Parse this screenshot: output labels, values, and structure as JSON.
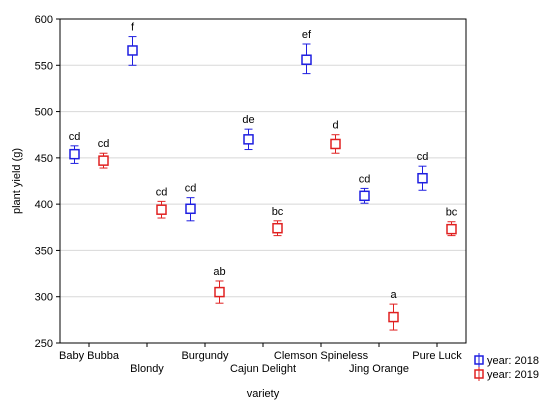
{
  "chart_data": {
    "type": "scatter",
    "title": "",
    "xlabel": "variety",
    "ylabel": "plant yield (g)",
    "ylim": [
      250,
      600
    ],
    "yticks": [
      250,
      300,
      350,
      400,
      450,
      500,
      550,
      600
    ],
    "grid": true,
    "legend_position": "bottom-right",
    "categories": [
      "Baby Bubba",
      "Blondy",
      "Burgundy",
      "Cajun Delight",
      "Clemson Spineless",
      "Jing Orange",
      "Pure Luck"
    ],
    "series": [
      {
        "name": "year: 2018",
        "color": "#1f1fe0",
        "marker": "square",
        "values": [
          454,
          566,
          395,
          470,
          556,
          409,
          428
        ],
        "err_low": [
          444,
          550,
          382,
          459,
          541,
          401,
          415
        ],
        "err_high": [
          463,
          581,
          407,
          481,
          573,
          417,
          441
        ],
        "letters": [
          "cd",
          "f",
          "cd",
          "de",
          "ef",
          "cd",
          "cd"
        ]
      },
      {
        "name": "year: 2019",
        "color": "#e02020",
        "marker": "square",
        "values": [
          447,
          394,
          305,
          374,
          465,
          278,
          373
        ],
        "err_low": [
          439,
          385,
          293,
          366,
          455,
          264,
          366
        ],
        "err_high": [
          455,
          403,
          317,
          382,
          475,
          292,
          381
        ],
        "letters": [
          "cd",
          "cd",
          "ab",
          "bc",
          "d",
          "a",
          "bc"
        ]
      }
    ]
  }
}
